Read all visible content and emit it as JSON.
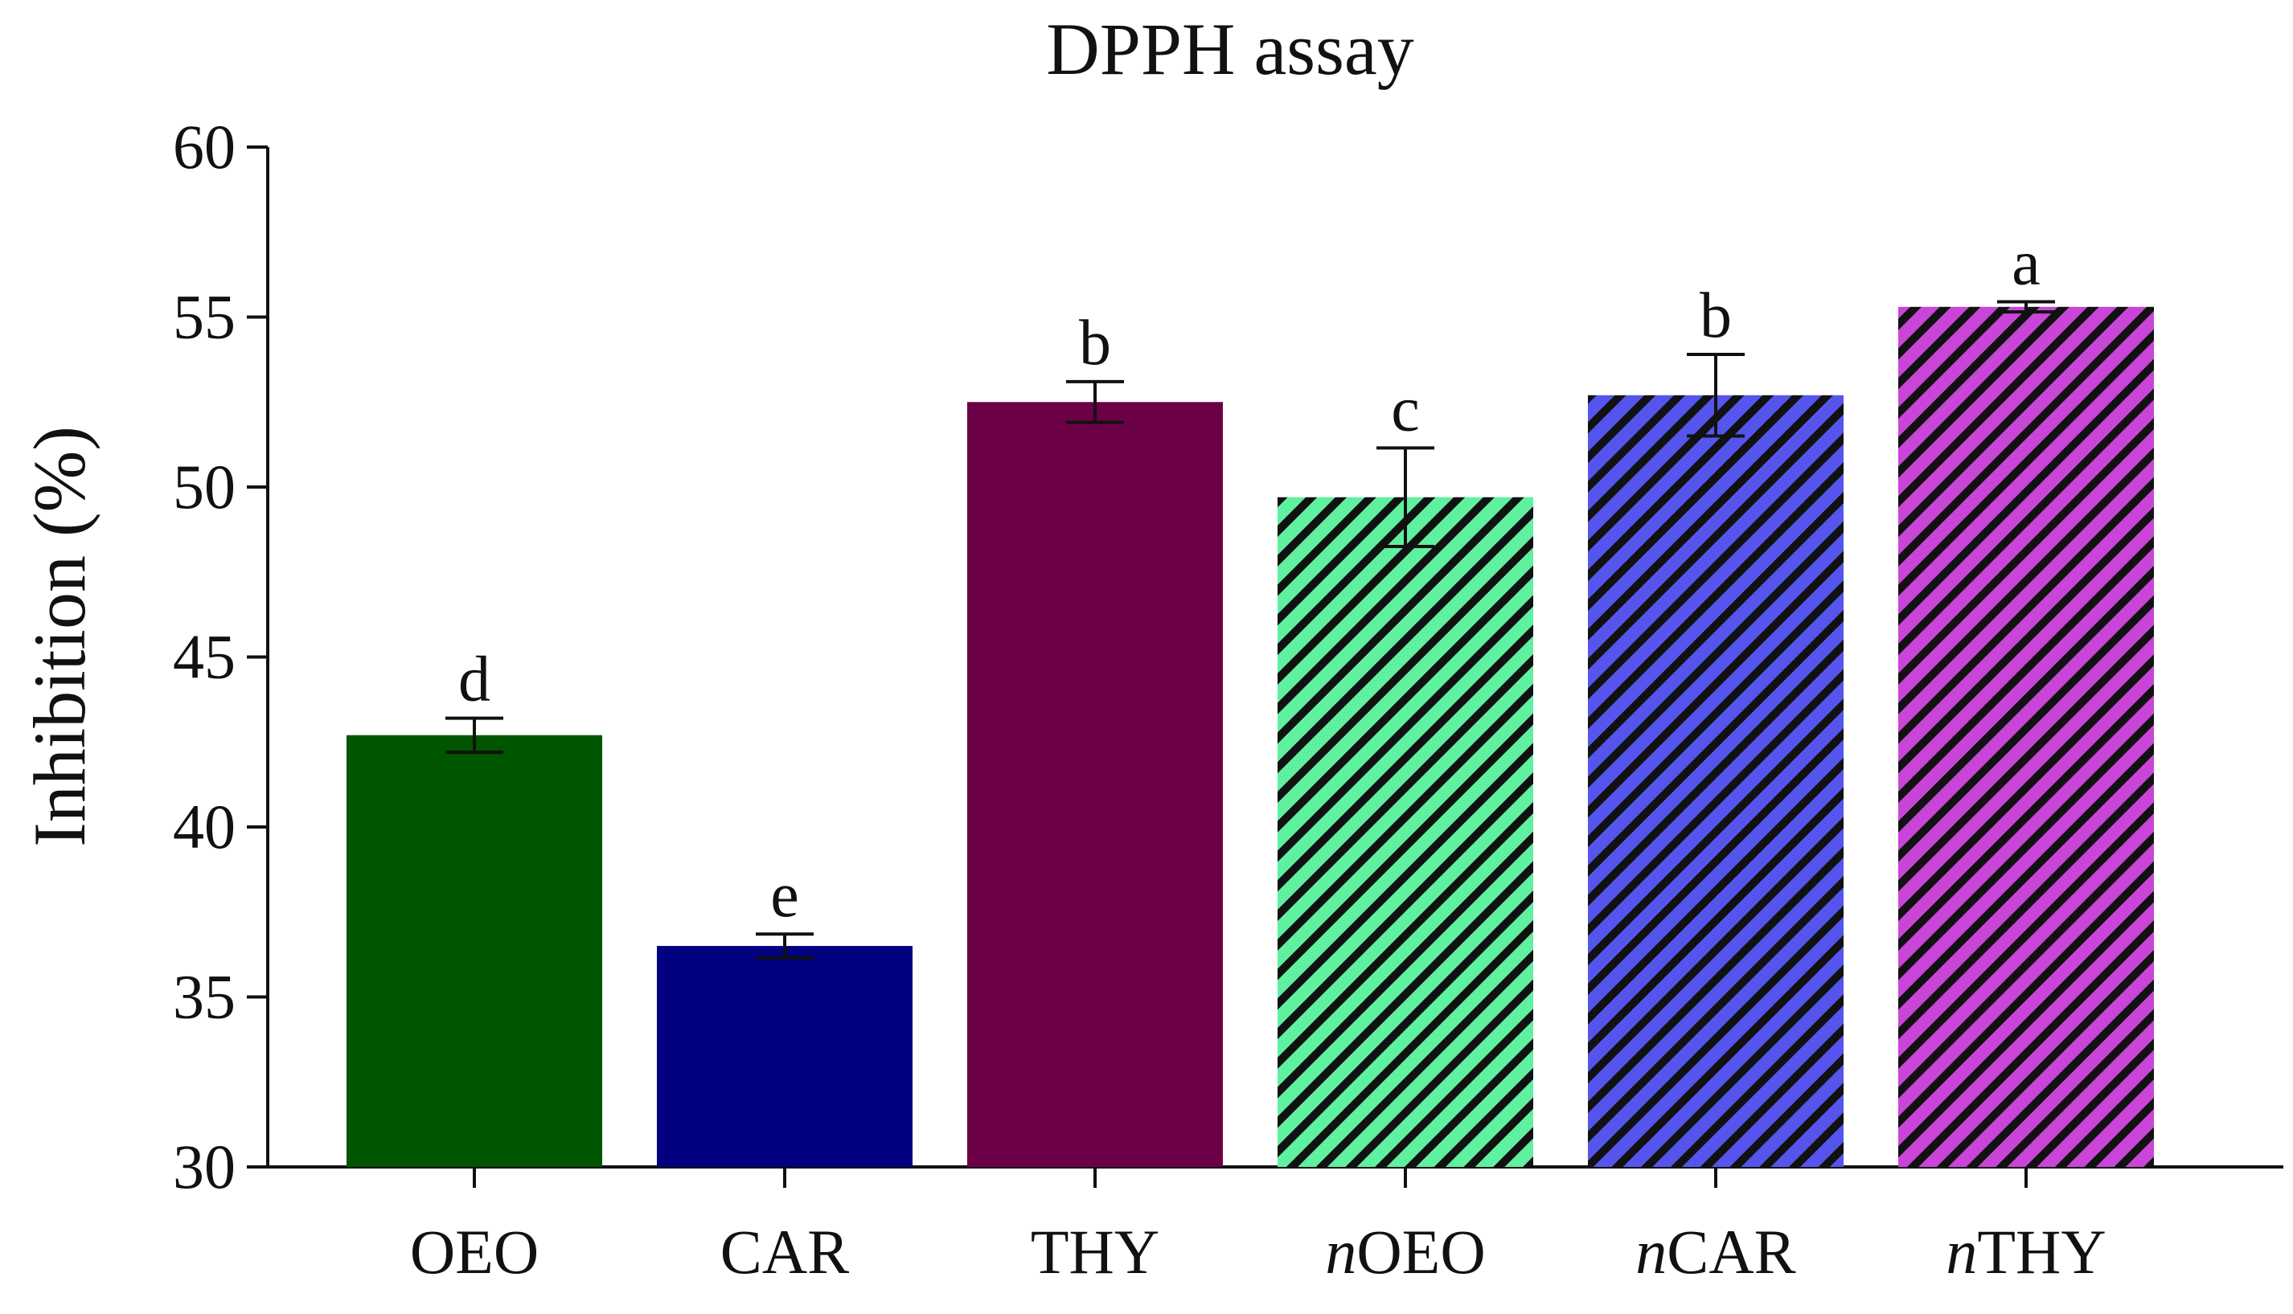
{
  "chart_data": {
    "type": "bar",
    "title": "DPPH assay",
    "xlabel": "",
    "ylabel": "Inhibition (%)",
    "ylim": [
      30,
      60
    ],
    "yticks": [
      30,
      35,
      40,
      45,
      50,
      55,
      60
    ],
    "grid": false,
    "legend": "none",
    "categories": [
      {
        "prefix": "",
        "name": "OEO"
      },
      {
        "prefix": "",
        "name": "CAR"
      },
      {
        "prefix": "",
        "name": "THY"
      },
      {
        "prefix": "n",
        "name": "OEO"
      },
      {
        "prefix": "n",
        "name": "CAR"
      },
      {
        "prefix": "n",
        "name": "THY"
      }
    ],
    "values": [
      42.7,
      36.5,
      52.5,
      49.7,
      52.7,
      55.3
    ],
    "errors": [
      0.5,
      0.35,
      0.6,
      1.45,
      1.2,
      0.15
    ],
    "significance_letters": [
      "d",
      "e",
      "b",
      "c",
      "b",
      "a"
    ],
    "colors": [
      "#005500",
      "#000080",
      "#6b0047",
      "#5ff0a0",
      "#5555ee",
      "#c945d8"
    ],
    "hatched": [
      false,
      false,
      false,
      true,
      true,
      true
    ],
    "hatch_color": "#111111"
  }
}
